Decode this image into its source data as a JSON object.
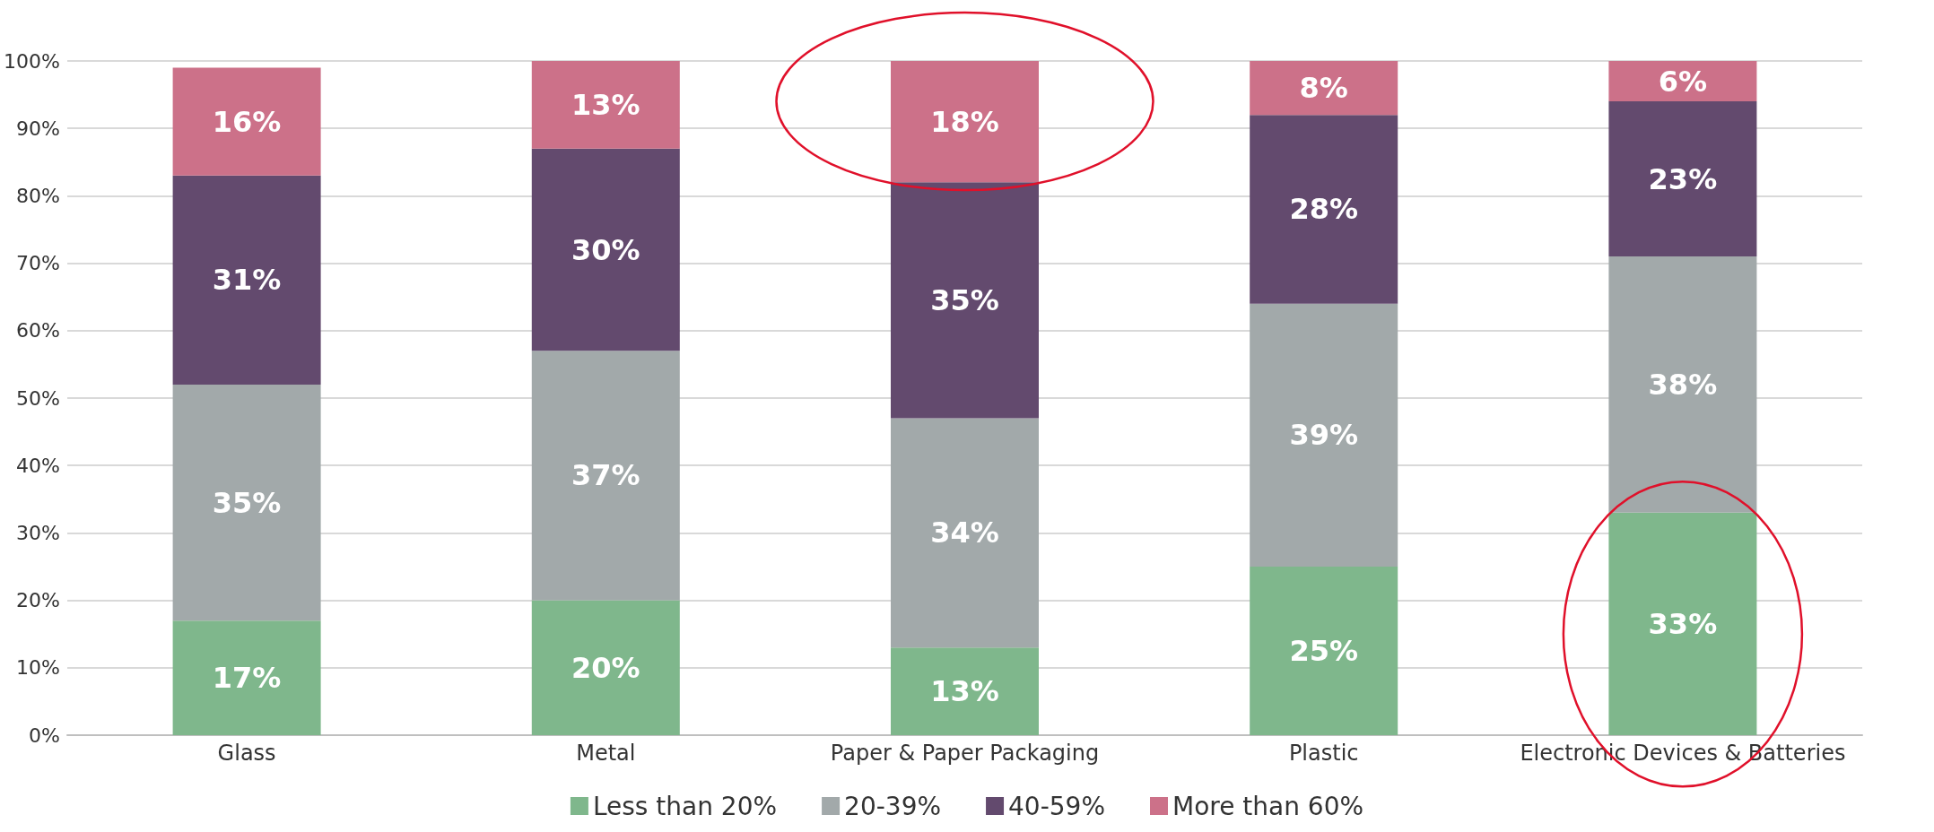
{
  "chart_data": {
    "type": "bar",
    "stacked": true,
    "categories": [
      "Glass",
      "Metal",
      "Paper & Paper Packaging",
      "Plastic",
      "Electronic Devices & Batteries"
    ],
    "series": [
      {
        "name": "Less than 20%",
        "color": "#7fb78c",
        "values": [
          17,
          20,
          13,
          25,
          33
        ],
        "value_labels": [
          "17%",
          "20%",
          "13%",
          "25%",
          "33%"
        ]
      },
      {
        "name": "20-39%",
        "color": "#a2a9aa",
        "values": [
          35,
          37,
          34,
          39,
          38
        ],
        "value_labels": [
          "35%",
          "37%",
          "34%",
          "39%",
          "38%"
        ]
      },
      {
        "name": "40-59%",
        "color": "#634a6e",
        "values": [
          31,
          30,
          35,
          28,
          23
        ],
        "value_labels": [
          "31%",
          "30%",
          "35%",
          "28%",
          "23%"
        ]
      },
      {
        "name": "More than 60%",
        "color": "#cc7189",
        "values": [
          16,
          13,
          18,
          8,
          6
        ],
        "value_labels": [
          "16%",
          "13%",
          "18%",
          "8%",
          "6%"
        ]
      }
    ],
    "ylim": [
      0,
      100
    ],
    "yticks": [
      {
        "value": 0,
        "label": "0%"
      },
      {
        "value": 10,
        "label": "10%"
      },
      {
        "value": 20,
        "label": "20%"
      },
      {
        "value": 30,
        "label": "30%"
      },
      {
        "value": 40,
        "label": "40%"
      },
      {
        "value": 50,
        "label": "50%"
      },
      {
        "value": 60,
        "label": "60%"
      },
      {
        "value": 70,
        "label": "70%"
      },
      {
        "value": 80,
        "label": "80%"
      },
      {
        "value": 90,
        "label": "90%"
      },
      {
        "value": 100,
        "label": "100%"
      }
    ],
    "grid": "y",
    "legend": "bottom"
  }
}
